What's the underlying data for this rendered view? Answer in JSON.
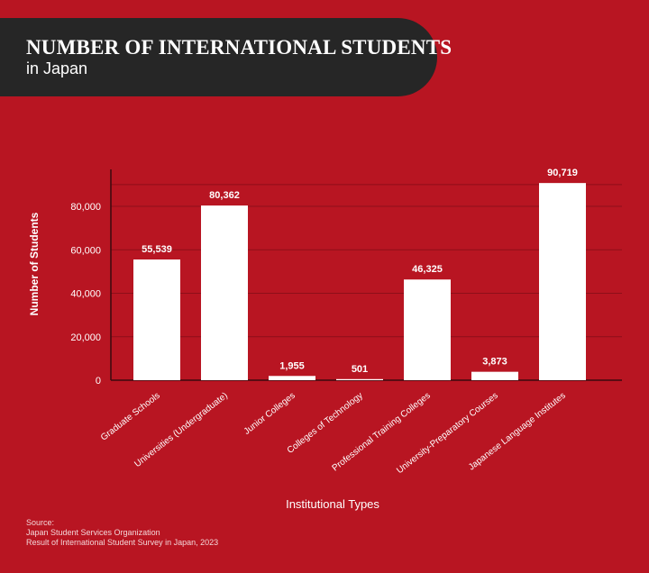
{
  "header": {
    "title": "NUMBER OF INTERNATIONAL STUDENTS",
    "subtitle": "in Japan"
  },
  "footer": {
    "source_label": "Source:",
    "source_org": "Japan Student Services Organization",
    "source_doc": "Result of International Student Survey in Japan, 2023"
  },
  "colors": {
    "background": "#b81522",
    "banner": "#262626",
    "bar": "#ffffff",
    "gridline": "#8e0f19",
    "text": "#ffffff"
  },
  "chart_data": {
    "type": "bar",
    "categories": [
      "Graduate Schools",
      "Universities (Undergraduate)",
      "Junior Colleges",
      "Colleges of Technology",
      "Professional Training Colleges",
      "University-Preparatory Courses",
      "Japanese Language Institutes"
    ],
    "values": [
      55539,
      80362,
      1955,
      501,
      46325,
      3873,
      90719
    ],
    "value_labels": [
      "55,539",
      "80,362",
      "1,955",
      "501",
      "46,325",
      "3,873",
      "90,719"
    ],
    "title": "NUMBER OF INTERNATIONAL STUDENTS",
    "subtitle": "in Japan",
    "xlabel": "Institutional Types",
    "ylabel": "Number of Students",
    "ylim": [
      0,
      100000
    ],
    "yticks": [
      0,
      20000,
      40000,
      60000,
      80000
    ],
    "ytick_labels": [
      "0",
      "20,000",
      "40,000",
      "60,000",
      "80,000"
    ],
    "grid": true,
    "legend": "none"
  }
}
